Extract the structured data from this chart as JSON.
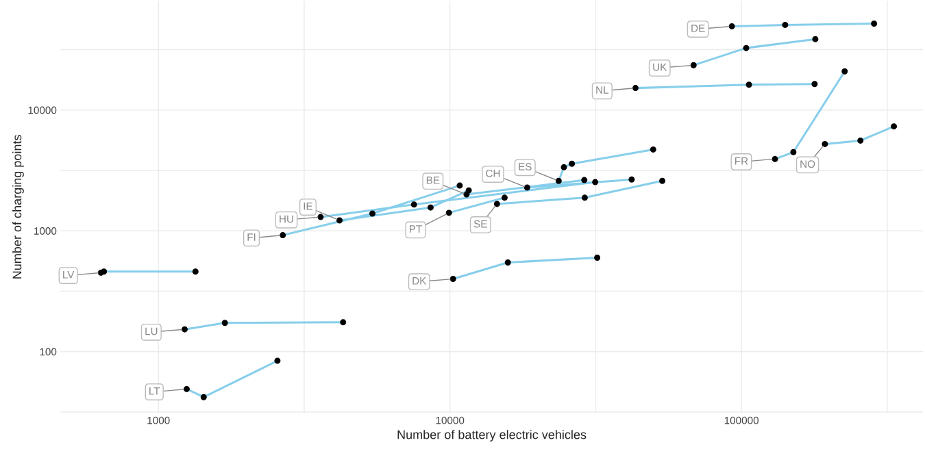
{
  "chart_data": {
    "type": "line",
    "xlabel": "Number of battery electric vehicles",
    "ylabel": "Number of charging points",
    "log": "xy",
    "grid": true,
    "legend": false,
    "marker": "circle",
    "line_style": "solid",
    "xlim": [
      460,
      420000
    ],
    "ylim": [
      31,
      80000
    ],
    "xticks": [
      1000,
      {
        "value": 3162,
        "label": null
      },
      10000,
      {
        "value": 31623,
        "label": null
      },
      100000,
      {
        "value": 316228,
        "label": null
      }
    ],
    "yticks": [
      {
        "value": 31.62,
        "label": null
      },
      100,
      {
        "value": 316.2,
        "label": null
      },
      1000,
      {
        "value": 3162,
        "label": null
      },
      10000,
      {
        "value": 31623,
        "label": null
      }
    ],
    "series": [
      {
        "name": "DE",
        "color": "#87ceeb",
        "x": [
          92700,
          141200,
          285000
        ],
        "values": [
          49300,
          50600,
          51900
        ]
      },
      {
        "name": "UK",
        "color": "#87ceeb",
        "x": [
          68500,
          103800,
          179200
        ],
        "values": [
          23500,
          32600,
          38600
        ]
      },
      {
        "name": "NL",
        "color": "#87ceeb",
        "x": [
          43300,
          106100,
          178200
        ],
        "values": [
          15200,
          16200,
          16400
        ]
      },
      {
        "name": "NO",
        "color": "#87ceeb",
        "x": [
          193300,
          255900,
          333300
        ],
        "values": [
          5230,
          5580,
          7320
        ]
      },
      {
        "name": "FR",
        "color": "#87ceeb",
        "x": [
          130300,
          150700,
          226000
        ],
        "values": [
          3930,
          4480,
          20900
        ]
      },
      {
        "name": "ES",
        "color": "#87ceeb",
        "x": [
          23600,
          24600,
          26200,
          49800
        ],
        "values": [
          2590,
          3360,
          3590,
          4710
        ]
      },
      {
        "name": "CH",
        "color": "#87ceeb",
        "x": [
          18400,
          42000
        ],
        "values": [
          2280,
          2660
        ]
      },
      {
        "name": "BE",
        "color": "#87ceeb",
        "x": [
          11400,
          28900
        ],
        "values": [
          2000,
          2630
        ]
      },
      {
        "name": "SE",
        "color": "#87ceeb",
        "x": [
          14500,
          29000,
          53500
        ],
        "values": [
          1670,
          1880,
          2590
        ]
      },
      {
        "name": "PT",
        "color": "#87ceeb",
        "x": [
          9920,
          15400
        ],
        "values": [
          1410,
          1880
        ]
      },
      {
        "name": "HU",
        "color": "#87ceeb",
        "x": [
          3600,
          7530,
          31500
        ],
        "values": [
          1300,
          1650,
          2530
        ]
      },
      {
        "name": "IE",
        "color": "#87ceeb",
        "x": [
          4180,
          8580,
          11600
        ],
        "values": [
          1220,
          1560,
          2160
        ]
      },
      {
        "name": "FI",
        "color": "#87ceeb",
        "x": [
          2670,
          5420,
          10800
        ],
        "values": [
          920,
          1390,
          2370
        ]
      },
      {
        "name": "DK",
        "color": "#87ceeb",
        "x": [
          10250,
          15800,
          32000
        ],
        "values": [
          400,
          547,
          599
        ]
      },
      {
        "name": "LV",
        "color": "#87ceeb",
        "x": [
          635,
          650,
          1340
        ],
        "values": [
          450,
          460,
          460
        ]
      },
      {
        "name": "LU",
        "color": "#87ceeb",
        "x": [
          1230,
          1690,
          4300
        ],
        "values": [
          153,
          173,
          175
        ]
      },
      {
        "name": "LT",
        "color": "#87ceeb",
        "x": [
          1250,
          1430,
          2560
        ],
        "values": [
          49,
          42,
          84
        ]
      }
    ]
  }
}
